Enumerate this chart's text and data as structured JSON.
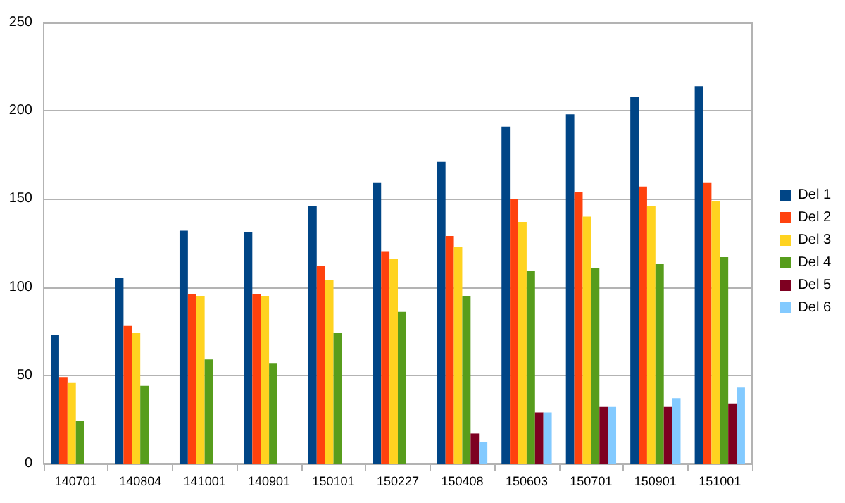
{
  "chart_data": {
    "type": "bar",
    "categories": [
      "140701",
      "140804",
      "141001",
      "140901",
      "150101",
      "150227",
      "150408",
      "150603",
      "150701",
      "150901",
      "151001"
    ],
    "series": [
      {
        "name": "Del 1",
        "color": "#004586",
        "values": [
          73,
          105,
          132,
          131,
          146,
          159,
          171,
          191,
          198,
          208,
          214
        ]
      },
      {
        "name": "Del 2",
        "color": "#ff420e",
        "values": [
          49,
          78,
          96,
          96,
          112,
          120,
          129,
          150,
          154,
          157,
          159
        ]
      },
      {
        "name": "Del 3",
        "color": "#ffd320",
        "values": [
          46,
          74,
          95,
          95,
          104,
          116,
          123,
          137,
          140,
          146,
          149
        ]
      },
      {
        "name": "Del 4",
        "color": "#579d1c",
        "values": [
          24,
          44,
          59,
          57,
          74,
          86,
          95,
          109,
          111,
          113,
          117
        ]
      },
      {
        "name": "Del 5",
        "color": "#7e0021",
        "values": [
          null,
          null,
          null,
          null,
          null,
          null,
          17,
          29,
          32,
          32,
          34
        ]
      },
      {
        "name": "Del 6",
        "color": "#83caff",
        "values": [
          null,
          null,
          null,
          null,
          null,
          null,
          12,
          29,
          32,
          37,
          43
        ]
      }
    ],
    "ylim": [
      0,
      250
    ],
    "yticks": [
      0,
      50,
      100,
      150,
      200,
      250
    ],
    "grid": "y",
    "legend": "right"
  }
}
